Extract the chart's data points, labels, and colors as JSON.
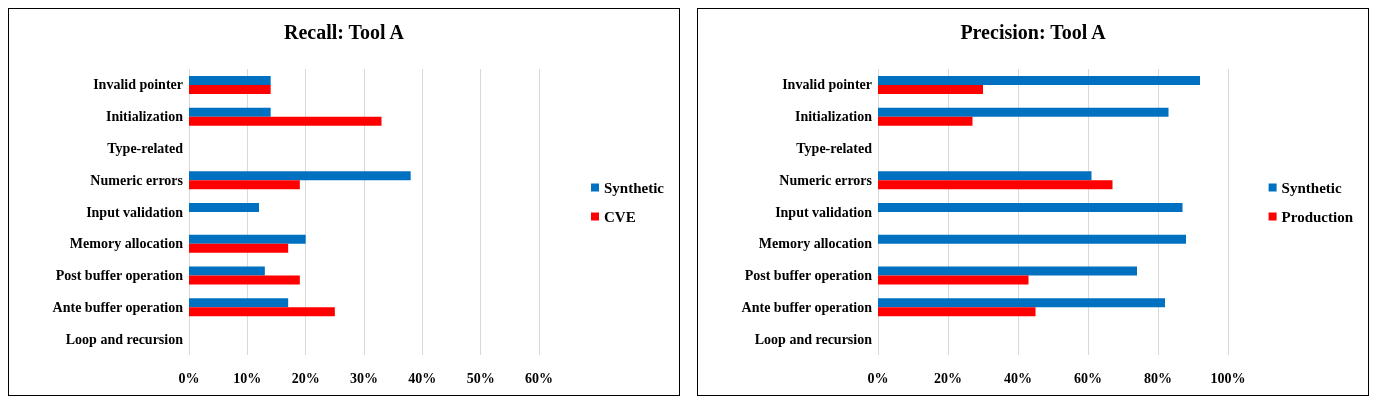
{
  "chart_data": [
    {
      "type": "bar",
      "orientation": "horizontal",
      "title": "Recall: Tool A",
      "categories": [
        "Invalid pointer",
        "Initialization",
        "Type-related",
        "Numeric errors",
        "Input validation",
        "Memory allocation",
        "Post buffer operation",
        "Ante buffer operation",
        "Loop and recursion"
      ],
      "series": [
        {
          "name": "Synthetic",
          "color": "#0070c0",
          "values": [
            14,
            14,
            0,
            38,
            12,
            20,
            13,
            17,
            0
          ]
        },
        {
          "name": "CVE",
          "color": "#ff0000",
          "values": [
            14,
            33,
            0,
            19,
            0,
            17,
            19,
            25,
            0
          ]
        }
      ],
      "xlim": [
        0,
        60
      ],
      "xticks": [
        {
          "value": 0,
          "label": "0%"
        },
        {
          "value": 10,
          "label": "10%"
        },
        {
          "value": 20,
          "label": "20%"
        },
        {
          "value": 30,
          "label": "30%"
        },
        {
          "value": 40,
          "label": "40%"
        },
        {
          "value": 50,
          "label": "50%"
        },
        {
          "value": 60,
          "label": "60%"
        }
      ],
      "grid": "x",
      "legend": "right"
    },
    {
      "type": "bar",
      "orientation": "horizontal",
      "title": "Precision: Tool A",
      "categories": [
        "Invalid pointer",
        "Initialization",
        "Type-related",
        "Numeric errors",
        "Input validation",
        "Memory allocation",
        "Post buffer operation",
        "Ante buffer operation",
        "Loop and recursion"
      ],
      "series": [
        {
          "name": "Synthetic",
          "color": "#0070c0",
          "values": [
            92,
            83,
            0,
            61,
            87,
            88,
            74,
            82,
            0
          ]
        },
        {
          "name": "Production",
          "color": "#ff0000",
          "values": [
            30,
            27,
            0,
            67,
            0,
            0,
            43,
            45,
            0
          ]
        }
      ],
      "xlim": [
        0,
        100
      ],
      "xticks": [
        {
          "value": 0,
          "label": "0%"
        },
        {
          "value": 20,
          "label": "20%"
        },
        {
          "value": 40,
          "label": "40%"
        },
        {
          "value": 60,
          "label": "60%"
        },
        {
          "value": 80,
          "label": "80%"
        },
        {
          "value": 100,
          "label": "100%"
        }
      ],
      "grid": "x",
      "legend": "right"
    }
  ]
}
